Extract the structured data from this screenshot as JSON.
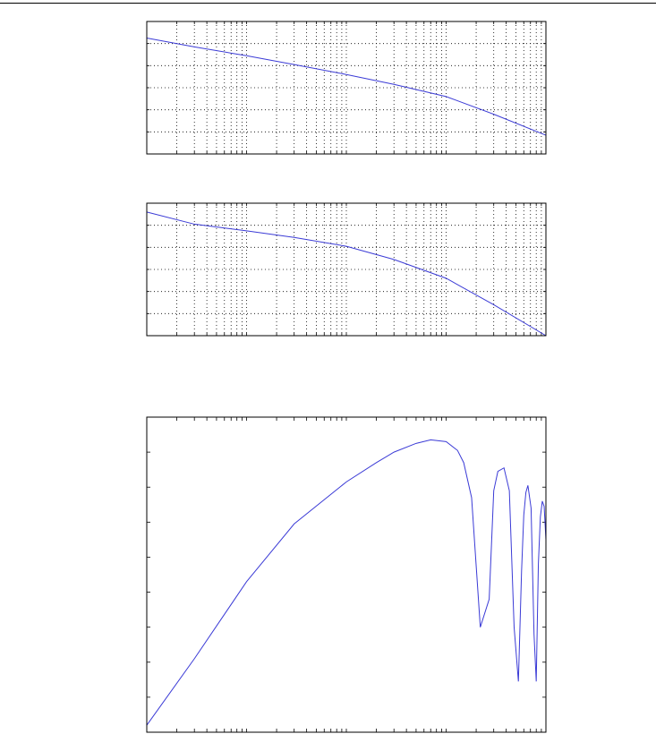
{
  "chart_data": [
    {
      "type": "line",
      "x_scale": "log",
      "xlim": [
        1,
        10000
      ],
      "ylim": [
        0,
        6
      ],
      "grid": true,
      "series": [
        {
          "x": [
            1,
            3,
            10,
            30,
            100,
            300,
            1000,
            3000,
            10000
          ],
          "y": [
            5.25,
            4.85,
            4.45,
            4.05,
            3.6,
            3.15,
            2.6,
            1.8,
            0.85
          ]
        }
      ]
    },
    {
      "type": "line",
      "x_scale": "log",
      "xlim": [
        1,
        10000
      ],
      "ylim": [
        0,
        6
      ],
      "grid": true,
      "series": [
        {
          "x": [
            1,
            3,
            10,
            30,
            100,
            300,
            1000,
            3000,
            10000
          ],
          "y": [
            5.6,
            5.05,
            4.75,
            4.45,
            4.05,
            3.45,
            2.6,
            1.4,
            0.0
          ]
        }
      ]
    },
    {
      "type": "line",
      "x_scale": "log",
      "xlim": [
        1,
        10000
      ],
      "ylim": [
        0,
        9
      ],
      "grid": false,
      "series": [
        {
          "x": [
            1,
            3,
            10,
            30,
            100,
            200,
            300,
            500,
            700,
            1000,
            1300,
            1500,
            1800,
            2200,
            2700,
            3000,
            3300,
            3800,
            4300,
            4800,
            5300,
            5700,
            6000,
            6300,
            6600,
            7100,
            7600,
            8000,
            8400,
            8800,
            9200,
            9600,
            10000
          ],
          "y": [
            0.2,
            2.1,
            4.3,
            5.95,
            7.15,
            7.7,
            8.0,
            8.25,
            8.35,
            8.3,
            8.05,
            7.7,
            6.7,
            3.0,
            3.8,
            6.9,
            7.45,
            7.55,
            6.9,
            3.0,
            1.45,
            4.6,
            6.2,
            6.85,
            7.05,
            6.4,
            2.8,
            1.45,
            4.8,
            6.15,
            6.6,
            6.45,
            5.5
          ]
        }
      ]
    }
  ],
  "style": {
    "axis_color": "#000000",
    "line_color": "#3b3bd6"
  }
}
